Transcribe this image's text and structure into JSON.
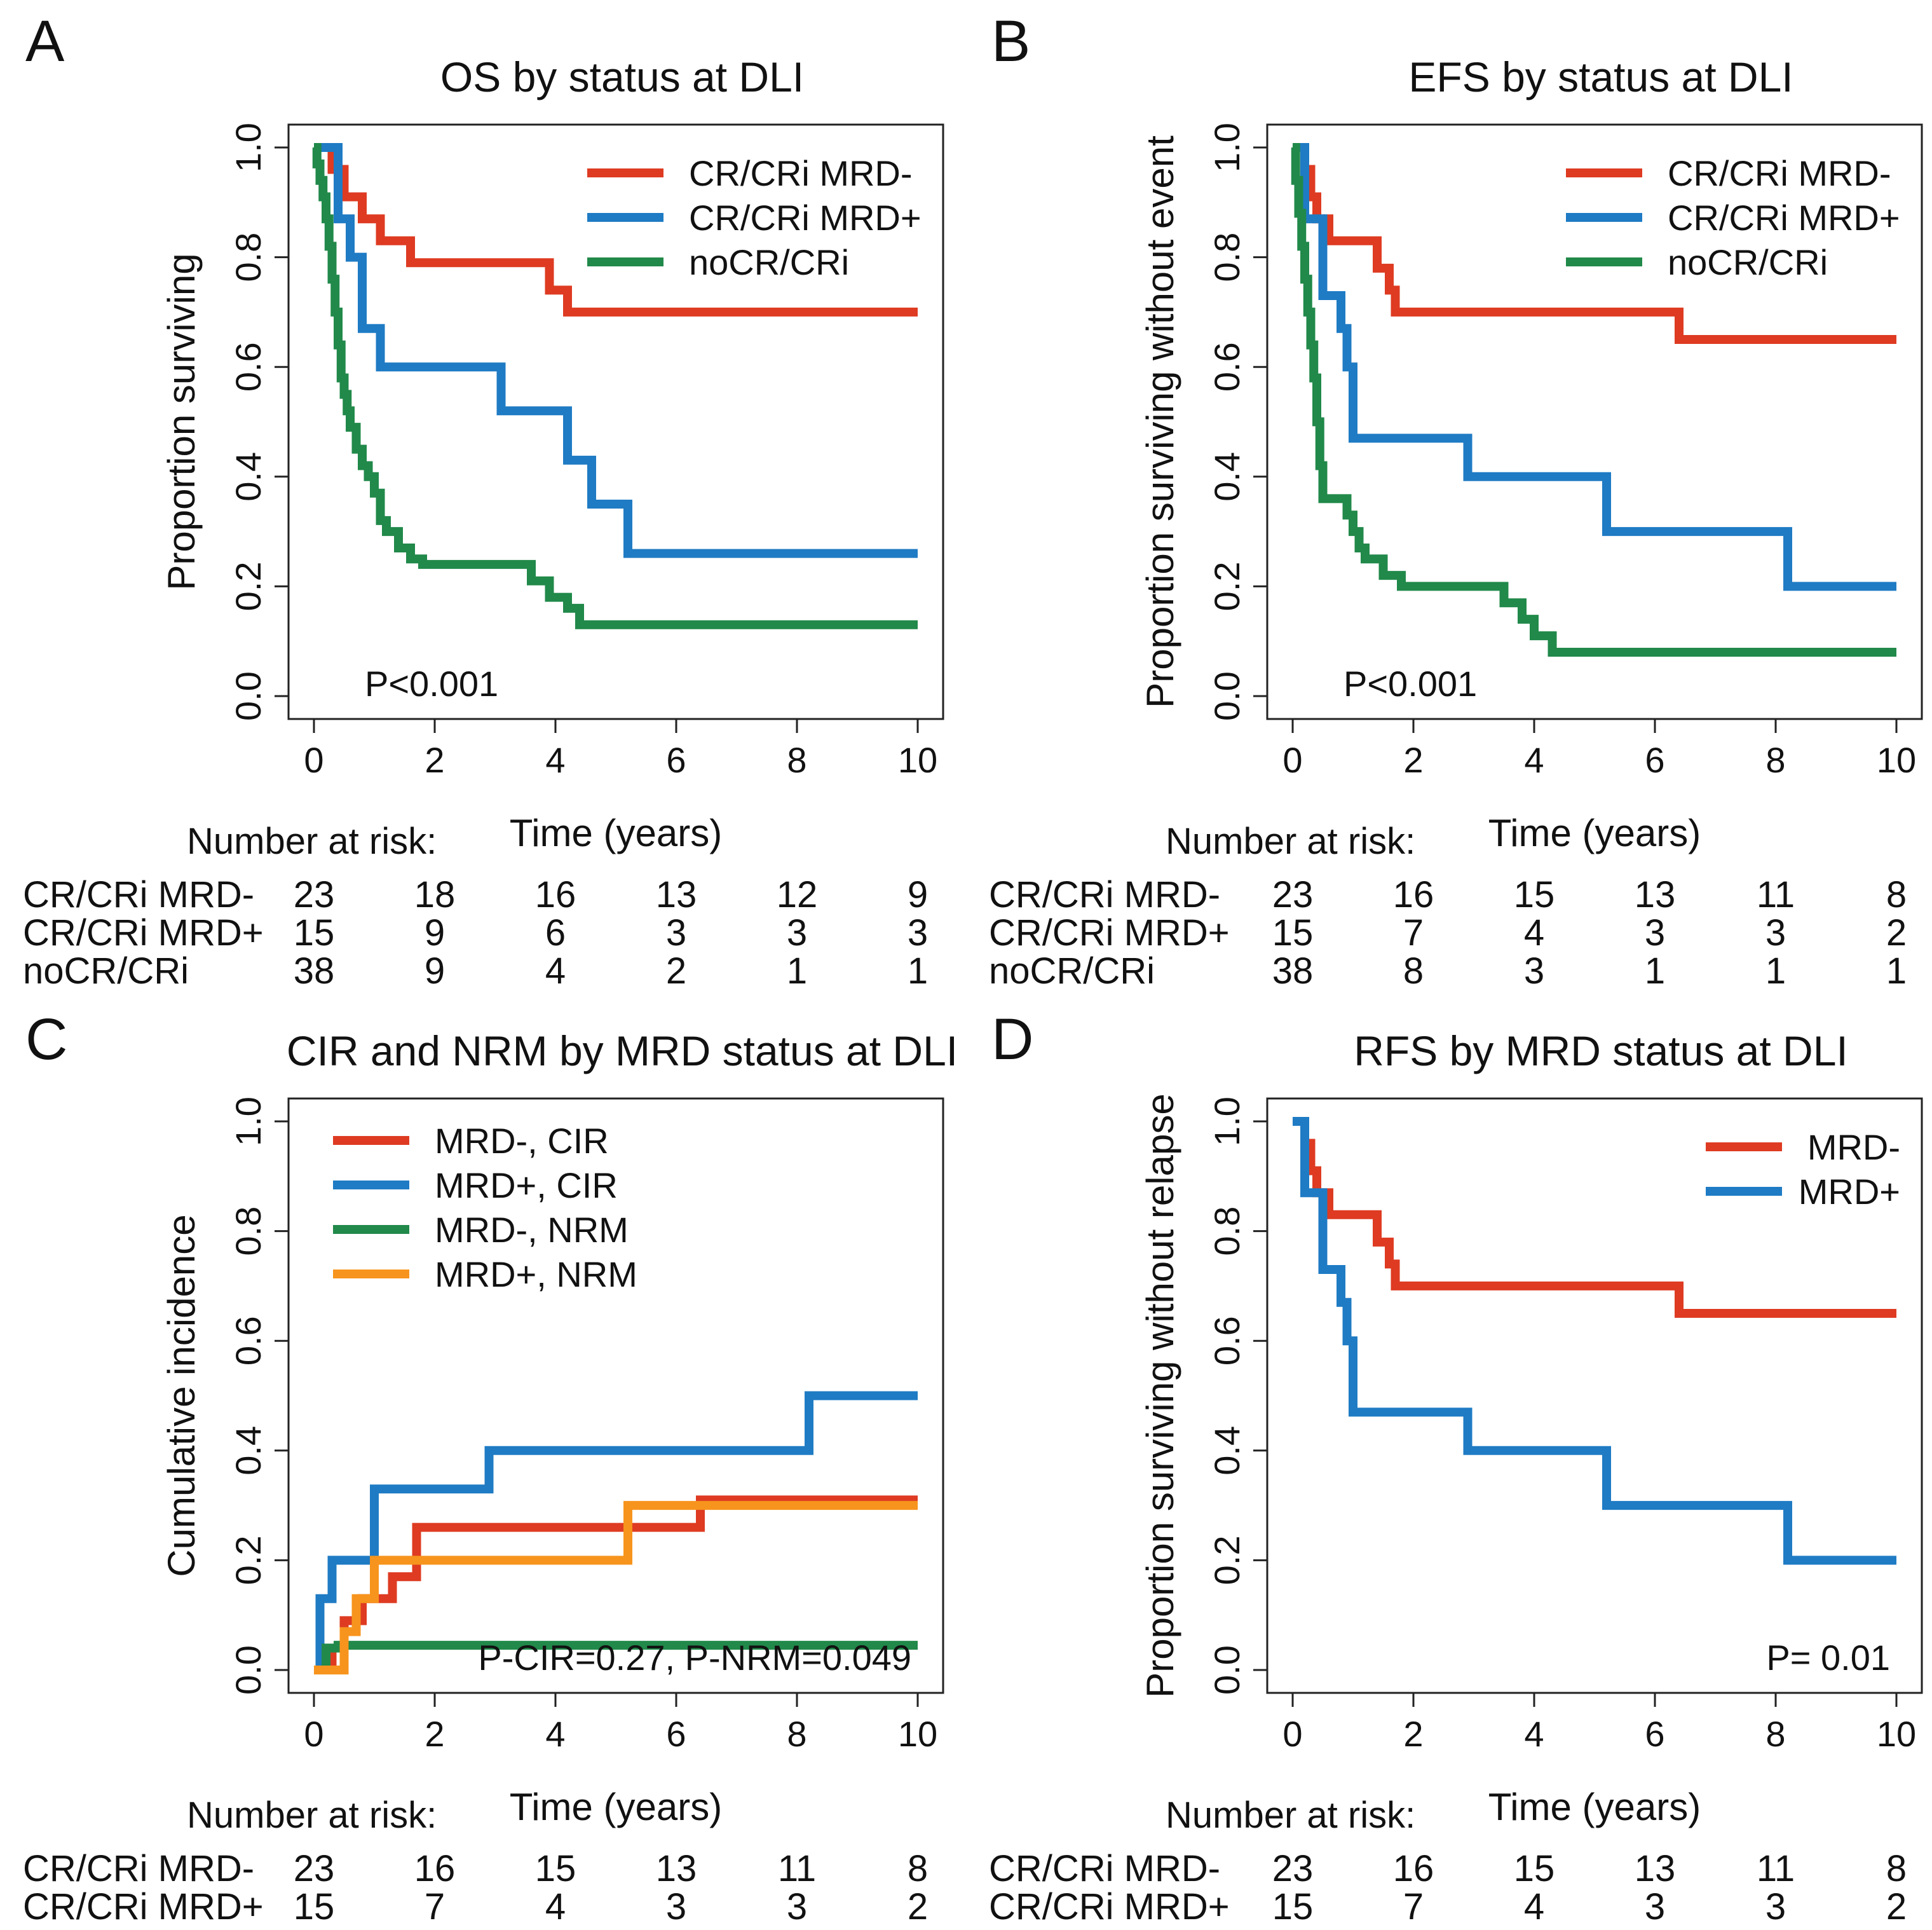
{
  "colors": {
    "red": "#de3b22",
    "blue": "#1f7bc4",
    "green": "#21894a",
    "orange": "#f7941d",
    "axis": "#222222"
  },
  "shared": {
    "xlabel": "Time (years)",
    "risk_header": "Number at risk:"
  },
  "chart_data": [
    {
      "id": "A",
      "panel_letter": "A",
      "type": "line",
      "step": true,
      "title": "OS by status at DLI",
      "xlabel": "Time (years)",
      "ylabel": "Proportion surviving",
      "xlim": [
        0,
        10
      ],
      "ylim": [
        0,
        1
      ],
      "xticks": [
        "0",
        "2",
        "4",
        "6",
        "8",
        "10"
      ],
      "yticks": [
        "0.0",
        "0.2",
        "0.4",
        "0.6",
        "0.8",
        "1.0"
      ],
      "legend_position": "top-right",
      "annotation": "P<0.001",
      "annotation_position": "bottom-left",
      "series": [
        {
          "name": "CR/CRi MRD-",
          "color_key": "red",
          "x": [
            0,
            0.3,
            0.5,
            0.8,
            1.1,
            1.6,
            3.9,
            4.2,
            10
          ],
          "y": [
            1,
            0.96,
            0.91,
            0.87,
            0.83,
            0.79,
            0.74,
            0.7,
            0.7
          ]
        },
        {
          "name": "CR/CRi MRD+",
          "color_key": "blue",
          "x": [
            0,
            0.4,
            0.6,
            0.8,
            1.1,
            3.1,
            4.2,
            4.6,
            5.2,
            10
          ],
          "y": [
            1,
            0.87,
            0.8,
            0.67,
            0.6,
            0.52,
            0.43,
            0.35,
            0.26,
            0.26
          ],
          "label_x": [
            0.1,
            0.3
          ]
        },
        {
          "name": "noCR/CRi",
          "color_key": "green",
          "x": [
            0,
            0.05,
            0.1,
            0.15,
            0.2,
            0.25,
            0.3,
            0.35,
            0.4,
            0.45,
            0.5,
            0.55,
            0.6,
            0.7,
            0.8,
            0.9,
            1.0,
            1.1,
            1.2,
            1.4,
            1.6,
            1.8,
            3.6,
            3.9,
            4.2,
            4.4,
            10
          ],
          "y": [
            1,
            0.97,
            0.94,
            0.91,
            0.87,
            0.82,
            0.76,
            0.7,
            0.64,
            0.58,
            0.55,
            0.52,
            0.49,
            0.45,
            0.42,
            0.4,
            0.37,
            0.32,
            0.3,
            0.27,
            0.25,
            0.24,
            0.21,
            0.18,
            0.16,
            0.13,
            0.13
          ]
        }
      ],
      "risk_table": {
        "times": [
          0,
          2,
          4,
          6,
          8,
          10
        ],
        "rows": [
          {
            "label": "CR/CRi MRD-",
            "values": [
              "23",
              "18",
              "16",
              "13",
              "12",
              "9"
            ]
          },
          {
            "label": "CR/CRi MRD+",
            "values": [
              "15",
              "9",
              "6",
              "3",
              "3",
              "3"
            ]
          },
          {
            "label": "noCR/CRi",
            "values": [
              "38",
              "9",
              "4",
              "2",
              "1",
              "1"
            ]
          }
        ]
      }
    },
    {
      "id": "B",
      "panel_letter": "B",
      "type": "line",
      "step": true,
      "title": "EFS by status at DLI",
      "xlabel": "Time (years)",
      "ylabel": "Proportion surviving without event",
      "xlim": [
        0,
        10
      ],
      "ylim": [
        0,
        1
      ],
      "xticks": [
        "0",
        "2",
        "4",
        "6",
        "8",
        "10"
      ],
      "yticks": [
        "0.0",
        "0.2",
        "0.4",
        "0.6",
        "0.8",
        "1.0"
      ],
      "legend_position": "top-right",
      "annotation": "P<0.001",
      "annotation_position": "bottom-left",
      "series": [
        {
          "name": "CR/CRi MRD-",
          "color_key": "red",
          "x": [
            0,
            0.2,
            0.3,
            0.4,
            0.6,
            0.9,
            1.4,
            1.6,
            1.7,
            6.4,
            10
          ],
          "y": [
            1,
            0.96,
            0.91,
            0.87,
            0.83,
            0.83,
            0.78,
            0.74,
            0.7,
            0.65,
            0.65
          ]
        },
        {
          "name": "CR/CRi MRD+",
          "color_key": "blue",
          "x": [
            0,
            0.2,
            0.5,
            0.8,
            0.9,
            1.0,
            2.9,
            5.2,
            8.2,
            10
          ],
          "y": [
            1,
            0.87,
            0.73,
            0.67,
            0.6,
            0.47,
            0.4,
            0.3,
            0.2,
            0.2
          ]
        },
        {
          "name": "noCR/CRi",
          "color_key": "green",
          "x": [
            0,
            0.05,
            0.1,
            0.15,
            0.2,
            0.25,
            0.3,
            0.35,
            0.4,
            0.45,
            0.5,
            0.9,
            1.0,
            1.1,
            1.2,
            1.5,
            1.8,
            3.5,
            3.8,
            4.0,
            4.3,
            10
          ],
          "y": [
            1,
            0.94,
            0.88,
            0.82,
            0.76,
            0.7,
            0.64,
            0.58,
            0.5,
            0.42,
            0.36,
            0.33,
            0.3,
            0.27,
            0.25,
            0.22,
            0.2,
            0.17,
            0.14,
            0.11,
            0.08,
            0.08
          ]
        }
      ],
      "risk_table": {
        "times": [
          0,
          2,
          4,
          6,
          8,
          10
        ],
        "rows": [
          {
            "label": "CR/CRi MRD-",
            "values": [
              "23",
              "16",
              "15",
              "13",
              "11",
              "8"
            ]
          },
          {
            "label": "CR/CRi MRD+",
            "values": [
              "15",
              "7",
              "4",
              "3",
              "3",
              "2"
            ]
          },
          {
            "label": "noCR/CRi",
            "values": [
              "38",
              "8",
              "3",
              "1",
              "1",
              "1"
            ]
          }
        ]
      }
    },
    {
      "id": "C",
      "panel_letter": "C",
      "type": "line",
      "step": true,
      "title": "CIR and NRM by MRD status at DLI",
      "xlabel": "Time (years)",
      "ylabel": "Cumulative incidence",
      "xlim": [
        0,
        10
      ],
      "ylim": [
        0,
        1
      ],
      "xticks": [
        "0",
        "2",
        "4",
        "6",
        "8",
        "10"
      ],
      "yticks": [
        "0.0",
        "0.2",
        "0.4",
        "0.6",
        "0.8",
        "1.0"
      ],
      "legend_position": "top-left",
      "annotation": "P-CIR=0.27, P-NRM=0.049",
      "annotation_position": "bottom-right",
      "series": [
        {
          "name": "MRD-, CIR",
          "color_key": "red",
          "x": [
            0,
            0.3,
            0.5,
            0.8,
            1.3,
            1.7,
            6.4,
            10
          ],
          "y": [
            0,
            0.04,
            0.09,
            0.13,
            0.17,
            0.26,
            0.31,
            0.31
          ]
        },
        {
          "name": "MRD+, CIR",
          "color_key": "blue",
          "x": [
            0,
            0.1,
            0.3,
            1.0,
            2.9,
            8.2,
            10
          ],
          "y": [
            0,
            0.13,
            0.2,
            0.33,
            0.4,
            0.5,
            0.5
          ]
        },
        {
          "name": "MRD-, NRM",
          "color_key": "green",
          "x": [
            0,
            0.2,
            0.4,
            10
          ],
          "y": [
            0,
            0.04,
            0.045,
            0.045
          ]
        },
        {
          "name": "MRD+, NRM",
          "color_key": "orange",
          "x": [
            0,
            0.5,
            0.7,
            1.0,
            5.2,
            10
          ],
          "y": [
            0,
            0.07,
            0.13,
            0.2,
            0.3,
            0.3
          ]
        }
      ],
      "risk_table": {
        "times": [
          0,
          2,
          4,
          6,
          8,
          10
        ],
        "rows": [
          {
            "label": "CR/CRi MRD-",
            "values": [
              "23",
              "16",
              "15",
              "13",
              "11",
              "8"
            ]
          },
          {
            "label": "CR/CRi MRD+",
            "values": [
              "15",
              "7",
              "4",
              "3",
              "3",
              "2"
            ]
          }
        ]
      }
    },
    {
      "id": "D",
      "panel_letter": "D",
      "type": "line",
      "step": true,
      "title": "RFS by MRD status at DLI",
      "xlabel": "Time (years)",
      "ylabel": "Proportion surviving without relapse",
      "xlim": [
        0,
        10
      ],
      "ylim": [
        0,
        1
      ],
      "xticks": [
        "0",
        "2",
        "4",
        "6",
        "8",
        "10"
      ],
      "yticks": [
        "0.0",
        "0.2",
        "0.4",
        "0.6",
        "0.8",
        "1.0"
      ],
      "legend_position": "top-right",
      "annotation": "P= 0.01",
      "annotation_position": "bottom-right",
      "series": [
        {
          "name": "MRD-",
          "color_key": "red",
          "x": [
            0,
            0.2,
            0.3,
            0.4,
            0.6,
            0.9,
            1.4,
            1.6,
            1.7,
            6.4,
            10
          ],
          "y": [
            1,
            0.96,
            0.91,
            0.87,
            0.83,
            0.83,
            0.78,
            0.74,
            0.7,
            0.65,
            0.65
          ]
        },
        {
          "name": "MRD+",
          "color_key": "blue",
          "x": [
            0,
            0.2,
            0.5,
            0.8,
            0.9,
            1.0,
            2.9,
            5.2,
            8.2,
            10
          ],
          "y": [
            1,
            0.87,
            0.73,
            0.67,
            0.6,
            0.47,
            0.4,
            0.3,
            0.2,
            0.2
          ]
        }
      ],
      "risk_table": {
        "times": [
          0,
          2,
          4,
          6,
          8,
          10
        ],
        "rows": [
          {
            "label": "CR/CRi MRD-",
            "values": [
              "23",
              "16",
              "15",
              "13",
              "11",
              "8"
            ]
          },
          {
            "label": "CR/CRi MRD+",
            "values": [
              "15",
              "7",
              "4",
              "3",
              "3",
              "2"
            ]
          }
        ]
      }
    }
  ]
}
